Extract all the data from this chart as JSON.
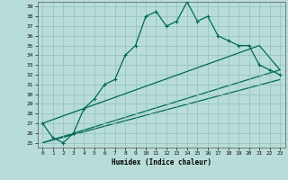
{
  "xlabel": "Humidex (Indice chaleur)",
  "xlim": [
    -0.5,
    23.5
  ],
  "ylim": [
    24.5,
    39.5
  ],
  "yticks": [
    25,
    26,
    27,
    28,
    29,
    30,
    31,
    32,
    33,
    34,
    35,
    36,
    37,
    38,
    39
  ],
  "xticks": [
    0,
    1,
    2,
    3,
    4,
    5,
    6,
    7,
    8,
    9,
    10,
    11,
    12,
    13,
    14,
    15,
    16,
    17,
    18,
    19,
    20,
    21,
    22,
    23
  ],
  "background_color": "#b8ddd8",
  "grid_color": "#90c0bc",
  "line_color": "#006858",
  "curve_x": [
    0,
    1,
    2,
    3,
    4,
    5,
    6,
    7,
    8,
    9,
    10,
    11,
    12,
    13,
    14,
    15,
    16,
    17,
    18,
    19,
    20,
    21,
    22,
    23
  ],
  "curve_y": [
    27.0,
    25.5,
    25.0,
    26.0,
    28.5,
    29.5,
    31.0,
    31.5,
    34.0,
    35.0,
    38.0,
    38.5,
    37.0,
    37.5,
    39.5,
    37.5,
    38.0,
    36.0,
    35.5,
    35.0,
    35.0,
    33.0,
    32.5,
    32.0
  ],
  "line1_x": [
    0,
    21,
    23
  ],
  "line1_y": [
    27.0,
    35.0,
    32.5
  ],
  "line2_x": [
    0,
    23
  ],
  "line2_y": [
    25.0,
    32.5
  ],
  "line3_x": [
    0,
    23
  ],
  "line3_y": [
    25.0,
    31.5
  ],
  "marker_size": 2.5,
  "linewidth": 0.9
}
